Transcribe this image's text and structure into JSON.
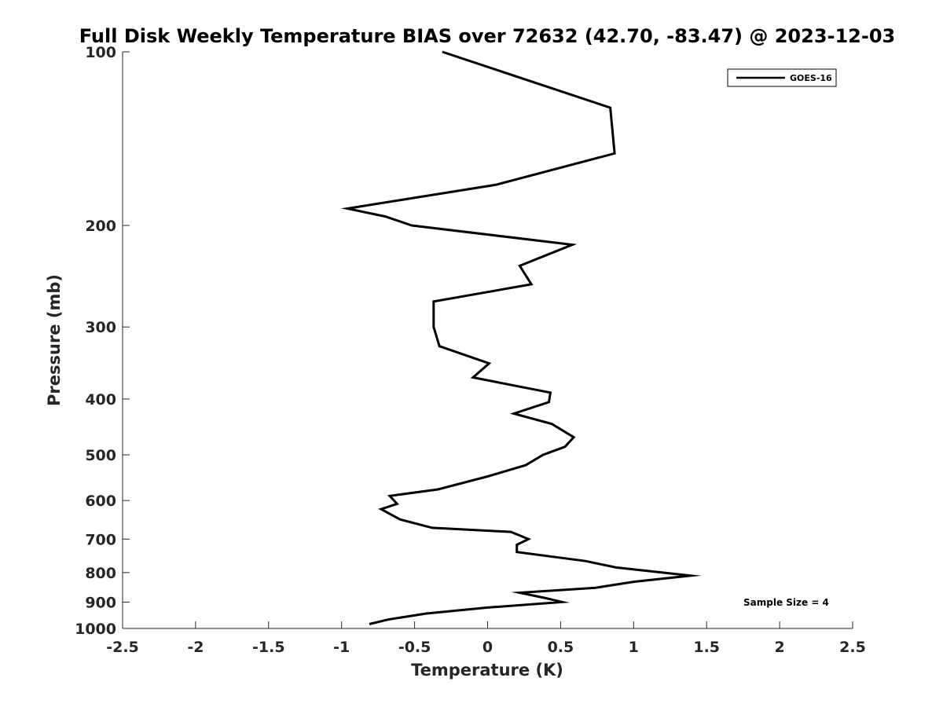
{
  "chart_data": {
    "type": "line",
    "title": "Full Disk Weekly Temperature BIAS over 72632 (42.70, -83.47) @ 2023-12-03",
    "xlabel": "Temperature (K)",
    "ylabel": "Pressure (mb)",
    "xlim": [
      -2.5,
      2.5
    ],
    "ylim": [
      100,
      1000
    ],
    "yscale": "log",
    "yaxis_inverted": true,
    "grid": false,
    "xticks": [
      -2.5,
      -2,
      -1.5,
      -1,
      -0.5,
      0,
      0.5,
      1,
      1.5,
      2,
      2.5
    ],
    "xtick_labels": [
      "-2.5",
      "-2",
      "-1.5",
      "-1",
      "-0.5",
      "0",
      "0.5",
      "1",
      "1.5",
      "2",
      "2.5"
    ],
    "yticks": [
      100,
      200,
      300,
      400,
      500,
      600,
      700,
      800,
      900,
      1000
    ],
    "ytick_labels": [
      "100",
      "200",
      "300",
      "400",
      "500",
      "600",
      "700",
      "800",
      "900",
      "1000"
    ],
    "legend_position": "top-right",
    "series": [
      {
        "name": "GOES-16",
        "color": "#000000",
        "points": [
          [
            -0.31,
            100
          ],
          [
            0.84,
            125
          ],
          [
            0.87,
            150
          ],
          [
            0.06,
            170
          ],
          [
            -0.96,
            187
          ],
          [
            -0.7,
            193
          ],
          [
            -0.52,
            200
          ],
          [
            0.58,
            216
          ],
          [
            0.22,
            235
          ],
          [
            0.3,
            253
          ],
          [
            -0.37,
            271
          ],
          [
            -0.37,
            300
          ],
          [
            -0.33,
            324
          ],
          [
            0.01,
            347
          ],
          [
            -0.1,
            367
          ],
          [
            0.43,
            390
          ],
          [
            0.42,
            405
          ],
          [
            0.18,
            424
          ],
          [
            0.44,
            442
          ],
          [
            0.59,
            466
          ],
          [
            0.53,
            484
          ],
          [
            0.38,
            500
          ],
          [
            0.26,
            521
          ],
          [
            0.0,
            545
          ],
          [
            -0.34,
            574
          ],
          [
            -0.67,
            589
          ],
          [
            -0.62,
            608
          ],
          [
            -0.73,
            621
          ],
          [
            -0.6,
            647
          ],
          [
            -0.38,
            669
          ],
          [
            0.16,
            680
          ],
          [
            0.28,
            700
          ],
          [
            0.2,
            716
          ],
          [
            0.2,
            737
          ],
          [
            0.67,
            764
          ],
          [
            0.88,
            784
          ],
          [
            1.39,
            810
          ],
          [
            1.0,
            830
          ],
          [
            0.74,
            850
          ],
          [
            0.22,
            867
          ],
          [
            0.39,
            885
          ],
          [
            0.51,
            900
          ],
          [
            0.0,
            920
          ],
          [
            -0.42,
            942
          ],
          [
            -0.68,
            965
          ],
          [
            -0.81,
            983
          ]
        ]
      }
    ],
    "annotation": "Sample Size = 4"
  }
}
